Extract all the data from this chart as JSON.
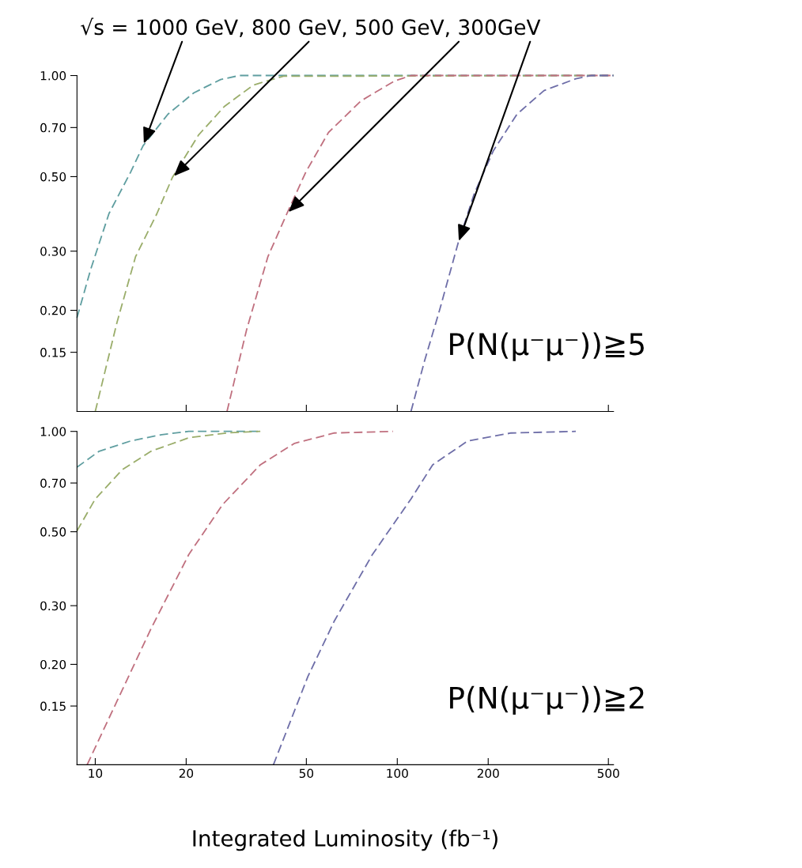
{
  "chart_data": [
    {
      "type": "line",
      "title": "√s = 1000 GeV, 800 GeV, 500 GeV, 300GeV",
      "log": "xy",
      "line_style": "dashed",
      "marker": "none",
      "grid": false,
      "legend": false,
      "tick_labels": "y",
      "xlim": [
        8.7,
        520
      ],
      "xticks": [
        {
          "value": 20,
          "label": null
        },
        {
          "value": 50,
          "label": null
        },
        {
          "value": 100,
          "label": null
        },
        {
          "value": 500,
          "label": null
        }
      ],
      "ylim": [
        0.1,
        1.0
      ],
      "yticks": [
        {
          "value": 0.15,
          "label": "0.15"
        },
        {
          "value": 0.2,
          "label": "0.20"
        },
        {
          "value": 0.3,
          "label": "0.30"
        },
        {
          "value": 0.5,
          "label": "0.50"
        },
        {
          "value": 0.7,
          "label": "0.70"
        },
        {
          "value": 1.0,
          "label": "1.00"
        }
      ],
      "annotations": [
        "P(N(μ⁻μ⁻))≧5"
      ],
      "series": [
        {
          "color": "#5f9ea0",
          "x": [
            8.7,
            9.66,
            11.1,
            13.1,
            14.4,
            17.4,
            21.2,
            26.0,
            30,
            520
          ],
          "values": [
            0.19,
            0.265,
            0.388,
            0.516,
            0.618,
            0.767,
            0.888,
            0.973,
            1.0,
            1.0
          ]
        },
        {
          "color": "#9aad6a",
          "x": [
            10.0,
            11.8,
            13.6,
            16.0,
            18.0,
            22.0,
            26.8,
            33.4,
            42,
            520
          ],
          "values": [
            0.1,
            0.184,
            0.289,
            0.388,
            0.497,
            0.666,
            0.81,
            0.937,
            0.995,
            1.0
          ]
        },
        {
          "color": "#c0707f",
          "x": [
            27.3,
            31.7,
            37.3,
            43.1,
            49.8,
            59.2,
            75.9,
            98,
            111,
            520
          ],
          "values": [
            0.1,
            0.175,
            0.289,
            0.388,
            0.516,
            0.677,
            0.841,
            0.963,
            1.0,
            1.0
          ]
        },
        {
          "color": "#6e6ea8",
          "x": [
            111,
            123,
            138,
            159,
            180,
            208,
            249,
            306,
            390,
            438,
            520
          ],
          "values": [
            0.1,
            0.141,
            0.2,
            0.317,
            0.446,
            0.597,
            0.767,
            0.902,
            0.978,
            1.0,
            1.0
          ]
        }
      ]
    },
    {
      "type": "line",
      "xlabel": "Integrated Luminosity (fb⁻¹)",
      "log": "xy",
      "line_style": "dashed",
      "marker": "none",
      "grid": false,
      "legend": false,
      "xlim": [
        8.7,
        520
      ],
      "xticks": [
        10,
        20,
        50,
        100,
        200,
        500
      ],
      "ylim": [
        0.1,
        1.0
      ],
      "yticks": [
        {
          "value": 0.15,
          "label": "0.15"
        },
        {
          "value": 0.2,
          "label": "0.20"
        },
        {
          "value": 0.3,
          "label": "0.30"
        },
        {
          "value": 0.5,
          "label": "0.50"
        },
        {
          "value": 0.7,
          "label": "0.70"
        },
        {
          "value": 1.0,
          "label": "1.00"
        }
      ],
      "annotations": [
        "P(N(μ⁻μ⁻))≧2"
      ],
      "series": [
        {
          "color": "#5f9ea0",
          "x": [
            8.7,
            10.3,
            13.1,
            16.6,
            20.4,
            35.2
          ],
          "values": [
            0.781,
            0.872,
            0.936,
            0.978,
            1.0,
            1.0
          ]
        },
        {
          "color": "#9aad6a",
          "x": [
            8.7,
            10.0,
            12.3,
            15.3,
            20.4,
            27.5,
            35.2
          ],
          "values": [
            0.503,
            0.627,
            0.768,
            0.872,
            0.957,
            0.99,
            1.0
          ]
        },
        {
          "color": "#c0707f",
          "x": [
            9.4,
            12.3,
            15.3,
            20.4,
            26.4,
            35.2,
            45.7,
            61.9,
            96.8
          ],
          "values": [
            0.1,
            0.168,
            0.256,
            0.427,
            0.603,
            0.794,
            0.921,
            0.989,
            1.0
          ]
        },
        {
          "color": "#6e6ea8",
          "x": [
            38.9,
            50.6,
            61.9,
            82.7,
            111,
            131,
            171,
            238,
            390
          ],
          "values": [
            0.1,
            0.184,
            0.27,
            0.427,
            0.627,
            0.794,
            0.936,
            0.989,
            1.0
          ]
        }
      ]
    }
  ]
}
